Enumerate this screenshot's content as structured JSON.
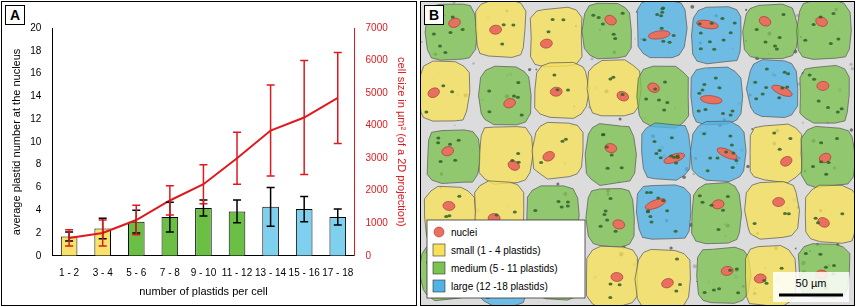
{
  "chart_data": {
    "type": "bar",
    "panel": "A",
    "x_label": "number of plastids per cell",
    "y_label": "average plastid number at the nucleus",
    "y2_label": "cell size in µm² (of a 2D projection)",
    "categories": [
      "1 - 2",
      "3 - 4",
      "5 - 6",
      "7 - 8",
      "9 - 10",
      "11 - 12",
      "13 - 14",
      "15 - 16",
      "17 - 18"
    ],
    "series": [
      {
        "type": "bar",
        "colors": [
          "#f7e36b",
          "#f7e36b",
          "#6cbf45",
          "#6cbf45",
          "#6cbf45",
          "#6cbf45",
          "#7fd0ee",
          "#7fd0ee",
          "#7fd0ee"
        ],
        "values": [
          1.7,
          2.4,
          3.0,
          3.4,
          4.2,
          3.9,
          4.3,
          4.1,
          3.4
        ],
        "errors": [
          0.4,
          0.9,
          1.0,
          1.3,
          0.7,
          1.0,
          1.7,
          1.1,
          0.7
        ]
      },
      {
        "type": "line",
        "color": "#e0191f",
        "axis": "y2",
        "marker": "none",
        "values": [
          550,
          700,
          1100,
          1700,
          2200,
          3000,
          3850,
          4250,
          4850
        ],
        "errors": [
          250,
          400,
          450,
          450,
          600,
          800,
          1400,
          1750,
          1400
        ]
      }
    ],
    "ylim": [
      0,
      20
    ],
    "yticks": [
      0,
      2,
      4,
      6,
      8,
      10,
      12,
      14,
      16,
      18,
      20
    ],
    "y2lim": [
      0,
      7000
    ],
    "y2ticks": [
      0,
      1000,
      2000,
      3000,
      4000,
      5000,
      6000,
      7000
    ],
    "grid": false
  },
  "panel_b": {
    "panel": "B",
    "legend": [
      {
        "label": "nuclei",
        "color": "#e8705f"
      },
      {
        "label": "small (1 - 4 plastids)",
        "color": "#f7e15a"
      },
      {
        "label": "medium (5 - 11 plastids)",
        "color": "#7cc24f"
      },
      {
        "label": "large (12 -18 plastids)",
        "color": "#4fb3e6"
      }
    ],
    "scale_bar": "50 µm"
  }
}
